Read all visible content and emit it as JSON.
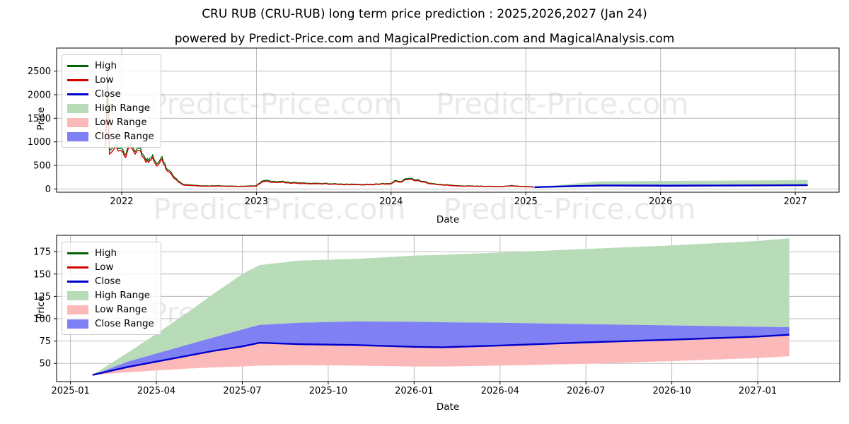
{
  "page": {
    "title": "CRU RUB (CRU-RUB) long term price prediction : 2025,2026,2027 (Jan 24)",
    "subtitle": "powered by Predict-Price.com and MagicalPrediction.com and MagicalAnalysis.com"
  },
  "watermark": {
    "text": "Predict-Price.com",
    "color": "#e9e9e9"
  },
  "colors": {
    "high_line": "#006400",
    "low_line": "#d40000",
    "close_line": "#0000cd",
    "high_range_fill": "#b7dcb7",
    "low_range_fill": "#fbb9b9",
    "close_range_fill": "#8080f5",
    "grid": "#b3b3b3",
    "frame": "#000000"
  },
  "history": {
    "dates": [
      2021.88,
      2021.895,
      2021.91,
      2021.95,
      2022.0,
      2022.03,
      2022.06,
      2022.1,
      2022.14,
      2022.17,
      2022.2,
      2022.23,
      2022.26,
      2022.3,
      2022.33,
      2022.37,
      2022.42,
      2022.46,
      2022.52,
      2022.6,
      2022.75,
      2022.9,
      2023.0,
      2023.04,
      2023.08,
      2023.12,
      2023.17,
      2023.25,
      2023.35,
      2023.5,
      2023.65,
      2023.8,
      2023.92,
      2024.0,
      2024.03,
      2024.07,
      2024.1,
      2024.13,
      2024.17,
      2024.22,
      2024.28,
      2024.35,
      2024.45,
      2024.55,
      2024.7,
      2024.83,
      2024.9,
      2024.96,
      2025.02,
      2025.06
    ],
    "low": [
      850,
      2000,
      700,
      860,
      800,
      690,
      900,
      760,
      800,
      600,
      560,
      650,
      520,
      600,
      430,
      300,
      140,
      85,
      70,
      62,
      58,
      52,
      60,
      150,
      168,
      138,
      148,
      128,
      118,
      108,
      95,
      88,
      98,
      115,
      168,
      145,
      185,
      205,
      190,
      155,
      115,
      92,
      72,
      60,
      54,
      52,
      66,
      52,
      45,
      38
    ],
    "high": [
      900,
      2600,
      780,
      910,
      850,
      740,
      960,
      810,
      850,
      650,
      600,
      700,
      565,
      650,
      470,
      335,
      160,
      98,
      80,
      70,
      65,
      58,
      68,
      170,
      190,
      155,
      165,
      142,
      130,
      118,
      104,
      96,
      106,
      126,
      185,
      160,
      205,
      228,
      210,
      170,
      126,
      100,
      79,
      66,
      59,
      57,
      72,
      57,
      50,
      42
    ]
  },
  "prediction": {
    "months": [
      0.77,
      2,
      3,
      4,
      5,
      6,
      6.6,
      8,
      10,
      12,
      13,
      15,
      18,
      21,
      24,
      25.1
    ],
    "close": [
      37,
      46,
      52,
      58,
      64,
      69,
      73,
      71.5,
      70.5,
      68.5,
      68,
      70,
      73.5,
      76.5,
      80,
      82
    ],
    "close_upper": [
      37,
      52,
      61,
      70,
      79,
      88,
      93,
      95.5,
      97,
      96.5,
      96,
      95.5,
      94,
      92.5,
      91,
      90.5
    ],
    "high_upper": [
      37,
      62,
      83,
      105,
      128,
      150,
      160,
      165,
      167,
      170.5,
      171.5,
      174,
      178,
      182,
      187,
      190
    ],
    "low_lower": [
      37,
      40,
      42,
      44,
      45.5,
      46.5,
      47.5,
      48,
      47.5,
      46.5,
      46.5,
      47.5,
      49.5,
      52.5,
      56,
      58
    ]
  },
  "chart_data": [
    {
      "type": "line",
      "title": "",
      "xlabel": "Date",
      "ylabel": "Price",
      "xlim": [
        2021.517,
        2027.325
      ],
      "ylim": [
        -69,
        2990
      ],
      "grid": true,
      "legend_position": "upper left",
      "x_ticks": [
        {
          "v": 2022,
          "label": "2022"
        },
        {
          "v": 2023,
          "label": "2023"
        },
        {
          "v": 2024,
          "label": "2024"
        },
        {
          "v": 2025,
          "label": "2025"
        },
        {
          "v": 2026,
          "label": "2026"
        },
        {
          "v": 2027,
          "label": "2027"
        }
      ],
      "y_ticks": [
        {
          "v": 0,
          "label": "0"
        },
        {
          "v": 500,
          "label": "500"
        },
        {
          "v": 1000,
          "label": "1000"
        },
        {
          "v": 1500,
          "label": "1500"
        },
        {
          "v": 2000,
          "label": "2000"
        },
        {
          "v": 2500,
          "label": "2500"
        }
      ],
      "legend": [
        {
          "label": "High",
          "swatch": "line",
          "color": "#006400"
        },
        {
          "label": "Low",
          "swatch": "line",
          "color": "#d40000"
        },
        {
          "label": "Close",
          "swatch": "line",
          "color": "#0000cd"
        },
        {
          "label": "High Range",
          "swatch": "patch",
          "color": "#b7dcb7"
        },
        {
          "label": "Low Range",
          "swatch": "patch",
          "color": "#fbb9b9"
        },
        {
          "label": "Close Range",
          "swatch": "patch",
          "color": "#8080f5"
        }
      ],
      "series": [
        {
          "name": "High Range",
          "kind": "band",
          "xref": "prediction.months",
          "xunit": "month",
          "upperRef": "prediction.high_upper",
          "lowerRef": "prediction.close_upper",
          "color": "#b7dcb7"
        },
        {
          "name": "Low Range",
          "kind": "band",
          "xref": "prediction.months",
          "xunit": "month",
          "upperRef": "prediction.close",
          "lowerRef": "prediction.low_lower",
          "color": "#fbb9b9"
        },
        {
          "name": "Close Range",
          "kind": "band",
          "xref": "prediction.months",
          "xunit": "month",
          "upperRef": "prediction.close_upper",
          "lowerRef": "prediction.close",
          "color": "#8080f5"
        },
        {
          "name": "High",
          "kind": "line",
          "xref": "history.dates",
          "yref": "history.high",
          "color": "#006400",
          "width": 1.3,
          "noise": 40,
          "seed": 11
        },
        {
          "name": "Low",
          "kind": "line",
          "xref": "history.dates",
          "yref": "history.low",
          "color": "#d40000",
          "width": 1.4,
          "noise": 40,
          "seed": 11
        },
        {
          "name": "Close",
          "kind": "line",
          "xref": "prediction.months",
          "xunit": "month",
          "yref": "prediction.close",
          "color": "#0000cd",
          "width": 2.4
        }
      ]
    },
    {
      "type": "line",
      "title": "",
      "xlabel": "Date",
      "ylabel": "Price",
      "xlim": [
        -0.485,
        26.865
      ],
      "ylim": [
        29.6,
        193.3
      ],
      "grid": true,
      "legend_position": "upper left",
      "x_ticks": [
        {
          "v": 0,
          "label": "2025-01"
        },
        {
          "v": 3,
          "label": "2025-04"
        },
        {
          "v": 6,
          "label": "2025-07"
        },
        {
          "v": 9,
          "label": "2025-10"
        },
        {
          "v": 12,
          "label": "2026-01"
        },
        {
          "v": 15,
          "label": "2026-04"
        },
        {
          "v": 18,
          "label": "2026-07"
        },
        {
          "v": 21,
          "label": "2026-10"
        },
        {
          "v": 24,
          "label": "2027-01"
        }
      ],
      "y_ticks": [
        {
          "v": 50,
          "label": "50"
        },
        {
          "v": 75,
          "label": "75"
        },
        {
          "v": 100,
          "label": "100"
        },
        {
          "v": 125,
          "label": "125"
        },
        {
          "v": 150,
          "label": "150"
        },
        {
          "v": 175,
          "label": "175"
        }
      ],
      "legend": [
        {
          "label": "High",
          "swatch": "line",
          "color": "#006400"
        },
        {
          "label": "Low",
          "swatch": "line",
          "color": "#d40000"
        },
        {
          "label": "Close",
          "swatch": "line",
          "color": "#0000cd"
        },
        {
          "label": "High Range",
          "swatch": "patch",
          "color": "#b7dcb7"
        },
        {
          "label": "Low Range",
          "swatch": "patch",
          "color": "#fbb9b9"
        },
        {
          "label": "Close Range",
          "swatch": "patch",
          "color": "#8080f5"
        }
      ],
      "series": [
        {
          "name": "High Range",
          "kind": "band",
          "xref": "prediction.months",
          "upperRef": "prediction.high_upper",
          "lowerRef": "prediction.close_upper",
          "color": "#b7dcb7"
        },
        {
          "name": "Low Range",
          "kind": "band",
          "xref": "prediction.months",
          "upperRef": "prediction.close",
          "lowerRef": "prediction.low_lower",
          "color": "#fbb9b9"
        },
        {
          "name": "Close Range",
          "kind": "band",
          "xref": "prediction.months",
          "upperRef": "prediction.close_upper",
          "lowerRef": "prediction.close",
          "color": "#8080f5"
        },
        {
          "name": "Close",
          "kind": "line",
          "xref": "prediction.months",
          "yref": "prediction.close",
          "color": "#0000cd",
          "width": 2.4
        }
      ]
    }
  ]
}
